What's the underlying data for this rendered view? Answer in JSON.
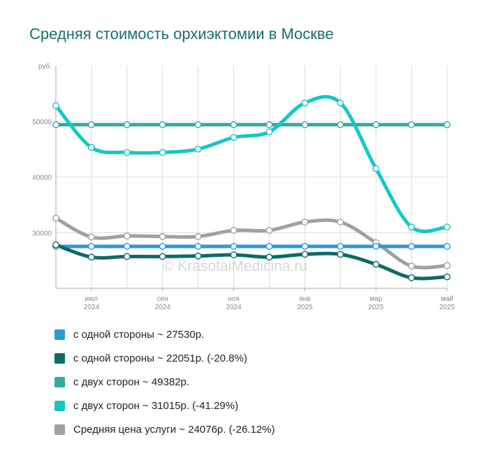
{
  "title": "Средняя стоимость орхиэктомии в Москве",
  "watermark": "© KrasotaiMedicina.ru",
  "chart_data": {
    "type": "line",
    "title": "Средняя стоимость орхиэктомии в Москве",
    "ylabel": "руб.",
    "ylim": [
      20000,
      60000
    ],
    "yticks": [
      30000,
      40000,
      50000
    ],
    "grid": true,
    "x": [
      0,
      1,
      2,
      3,
      4,
      5,
      6,
      7,
      8,
      9,
      10,
      11
    ],
    "xticks": [
      {
        "index": 1,
        "line1": "июл",
        "line2": "2024"
      },
      {
        "index": 3,
        "line1": "сен",
        "line2": "2024"
      },
      {
        "index": 5,
        "line1": "ноя",
        "line2": "2024"
      },
      {
        "index": 7,
        "line1": "янв",
        "line2": "2025"
      },
      {
        "index": 9,
        "line1": "мар",
        "line2": "2025"
      },
      {
        "index": 11,
        "line1": "май",
        "line2": "2025"
      }
    ],
    "series": [
      {
        "name": "с одной стороны ~ 27530р.",
        "color": "#2b9ad8",
        "values": [
          27530,
          27530,
          27530,
          27530,
          27530,
          27530,
          27530,
          27530,
          27530,
          27530,
          27530,
          27530
        ]
      },
      {
        "name": "с одной стороны ~ 22051р. (-20.8%)",
        "color": "#0d6b64",
        "values": [
          27800,
          25600,
          25700,
          25700,
          25800,
          26000,
          25600,
          26100,
          26100,
          24300,
          21900,
          22051
        ]
      },
      {
        "name": "с двух сторон ~ 49382р.",
        "color": "#35aaa0",
        "values": [
          49382,
          49382,
          49382,
          49382,
          49382,
          49382,
          49382,
          49382,
          49382,
          49382,
          49382,
          49382
        ]
      },
      {
        "name": "с двух сторон ~ 31015р. (-41.29%)",
        "color": "#13c8c4",
        "values": [
          52800,
          45300,
          44400,
          44400,
          45000,
          47100,
          48100,
          53300,
          53300,
          41500,
          31000,
          31015
        ]
      },
      {
        "name": "Средняя цена услуги ~ 24076р. (-26.12%)",
        "color": "#a0a0a0",
        "values": [
          32600,
          29200,
          29400,
          29300,
          29300,
          30400,
          30400,
          31900,
          31900,
          28200,
          24000,
          24076
        ]
      }
    ]
  },
  "legend": [
    {
      "label": "с одной стороны ~ 27530р.",
      "color": "#2b9ad8"
    },
    {
      "label": "с одной стороны ~ 22051р. (-20.8%)",
      "color": "#0d6b64"
    },
    {
      "label": "с двух сторон ~ 49382р.",
      "color": "#35aaa0"
    },
    {
      "label": "с двух сторон ~ 31015р. (-41.29%)",
      "color": "#13c8c4"
    },
    {
      "label": "Средняя цена услуги ~ 24076р. (-26.12%)",
      "color": "#a0a0a0"
    }
  ]
}
